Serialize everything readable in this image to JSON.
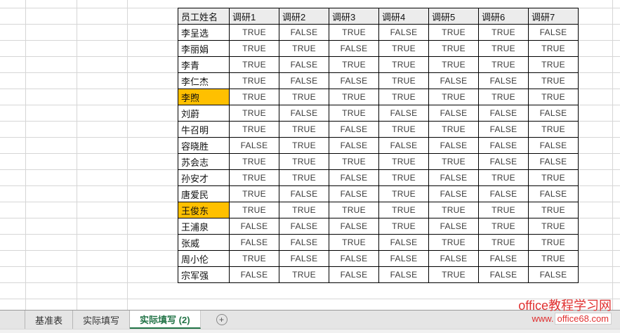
{
  "worksheet": {
    "columns": [
      "员工姓名",
      "调研1",
      "调研2",
      "调研3",
      "调研4",
      "调研5",
      "调研6",
      "调研7"
    ],
    "rows": [
      {
        "name": "李呈选",
        "highlight": false,
        "values": [
          "TRUE",
          "FALSE",
          "TRUE",
          "FALSE",
          "TRUE",
          "TRUE",
          "FALSE"
        ]
      },
      {
        "name": "李丽娟",
        "highlight": false,
        "values": [
          "TRUE",
          "TRUE",
          "FALSE",
          "TRUE",
          "TRUE",
          "TRUE",
          "TRUE"
        ]
      },
      {
        "name": "李青",
        "highlight": false,
        "values": [
          "TRUE",
          "FALSE",
          "TRUE",
          "TRUE",
          "TRUE",
          "TRUE",
          "TRUE"
        ]
      },
      {
        "name": "李仁杰",
        "highlight": false,
        "values": [
          "TRUE",
          "FALSE",
          "FALSE",
          "TRUE",
          "FALSE",
          "FALSE",
          "TRUE"
        ]
      },
      {
        "name": "李煦",
        "highlight": true,
        "values": [
          "TRUE",
          "TRUE",
          "TRUE",
          "TRUE",
          "TRUE",
          "TRUE",
          "TRUE"
        ]
      },
      {
        "name": "刘蔚",
        "highlight": false,
        "values": [
          "TRUE",
          "FALSE",
          "TRUE",
          "FALSE",
          "FALSE",
          "FALSE",
          "FALSE"
        ]
      },
      {
        "name": "牛召明",
        "highlight": false,
        "values": [
          "TRUE",
          "TRUE",
          "FALSE",
          "TRUE",
          "TRUE",
          "FALSE",
          "TRUE"
        ]
      },
      {
        "name": "容晓胜",
        "highlight": false,
        "values": [
          "FALSE",
          "TRUE",
          "FALSE",
          "FALSE",
          "FALSE",
          "FALSE",
          "FALSE"
        ]
      },
      {
        "name": "苏会志",
        "highlight": false,
        "values": [
          "TRUE",
          "TRUE",
          "TRUE",
          "TRUE",
          "TRUE",
          "FALSE",
          "FALSE"
        ]
      },
      {
        "name": "孙安才",
        "highlight": false,
        "values": [
          "TRUE",
          "TRUE",
          "FALSE",
          "TRUE",
          "FALSE",
          "TRUE",
          "TRUE"
        ]
      },
      {
        "name": "唐爱民",
        "highlight": false,
        "values": [
          "TRUE",
          "FALSE",
          "FALSE",
          "TRUE",
          "FALSE",
          "FALSE",
          "FALSE"
        ]
      },
      {
        "name": "王俊东",
        "highlight": true,
        "values": [
          "TRUE",
          "TRUE",
          "TRUE",
          "TRUE",
          "TRUE",
          "TRUE",
          "TRUE"
        ]
      },
      {
        "name": "王浦泉",
        "highlight": false,
        "values": [
          "FALSE",
          "FALSE",
          "FALSE",
          "TRUE",
          "FALSE",
          "TRUE",
          "TRUE"
        ]
      },
      {
        "name": "张威",
        "highlight": false,
        "values": [
          "FALSE",
          "FALSE",
          "TRUE",
          "FALSE",
          "TRUE",
          "TRUE",
          "TRUE"
        ]
      },
      {
        "name": "周小伦",
        "highlight": false,
        "values": [
          "TRUE",
          "FALSE",
          "FALSE",
          "FALSE",
          "FALSE",
          "FALSE",
          "TRUE"
        ]
      },
      {
        "name": "宗军强",
        "highlight": false,
        "values": [
          "FALSE",
          "TRUE",
          "FALSE",
          "FALSE",
          "TRUE",
          "FALSE",
          "FALSE"
        ]
      }
    ]
  },
  "sheet_tabs": [
    {
      "label": "基准表",
      "active": false
    },
    {
      "label": "实际填写",
      "active": false
    },
    {
      "label": "实际填写 (2)",
      "active": true
    }
  ],
  "add_sheet_label": "+",
  "watermark": {
    "line1": "office教程学习网",
    "www": "www.",
    "site": "office68.com"
  },
  "colors": {
    "highlight": "#FFC000",
    "active_tab_green": "#217346",
    "watermark_red": "#E03030",
    "header_fill": "#ECECEC",
    "grid_line": "#D6D6D6"
  }
}
